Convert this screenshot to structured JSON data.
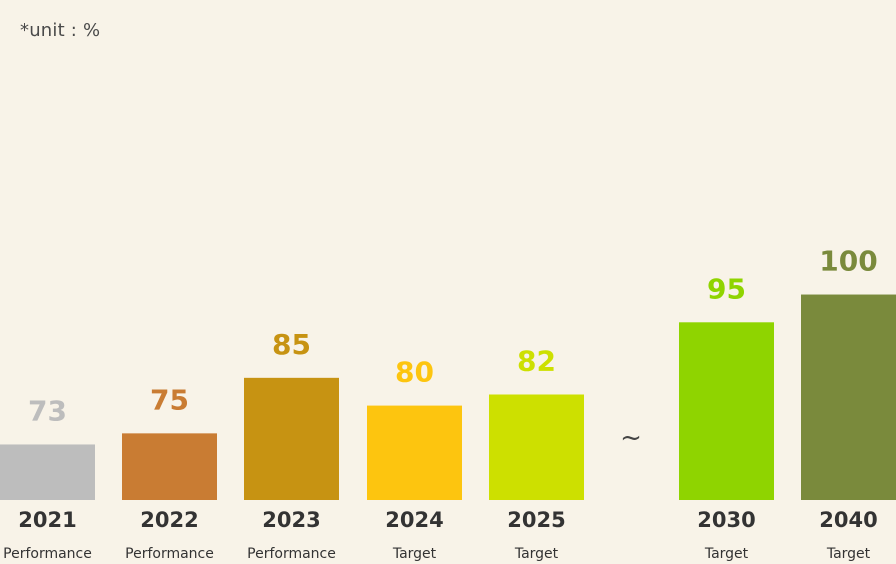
{
  "unit_note": "*unit : %",
  "chart_data": {
    "type": "bar",
    "categories": [
      "2021",
      "2022",
      "2023",
      "2024",
      "2025",
      "2030",
      "2040"
    ],
    "category_sublabels": [
      "Performance",
      "Performance",
      "Performance",
      "Target",
      "Target",
      "Target",
      "Target"
    ],
    "values": [
      73,
      75,
      85,
      80,
      82,
      95,
      100
    ],
    "value_labels": [
      "73",
      "75",
      "85",
      "80",
      "82",
      "95",
      "100"
    ],
    "colors": [
      "#bdbdbd",
      "#c97c33",
      "#c79312",
      "#fdc50f",
      "#cde000",
      "#8fd400",
      "#7a8a3c"
    ],
    "gap_marker": "~",
    "gap_after_index": 4,
    "title": "",
    "xlabel": "",
    "ylabel": "",
    "ylim": [
      63,
      110
    ],
    "grid": false
  }
}
